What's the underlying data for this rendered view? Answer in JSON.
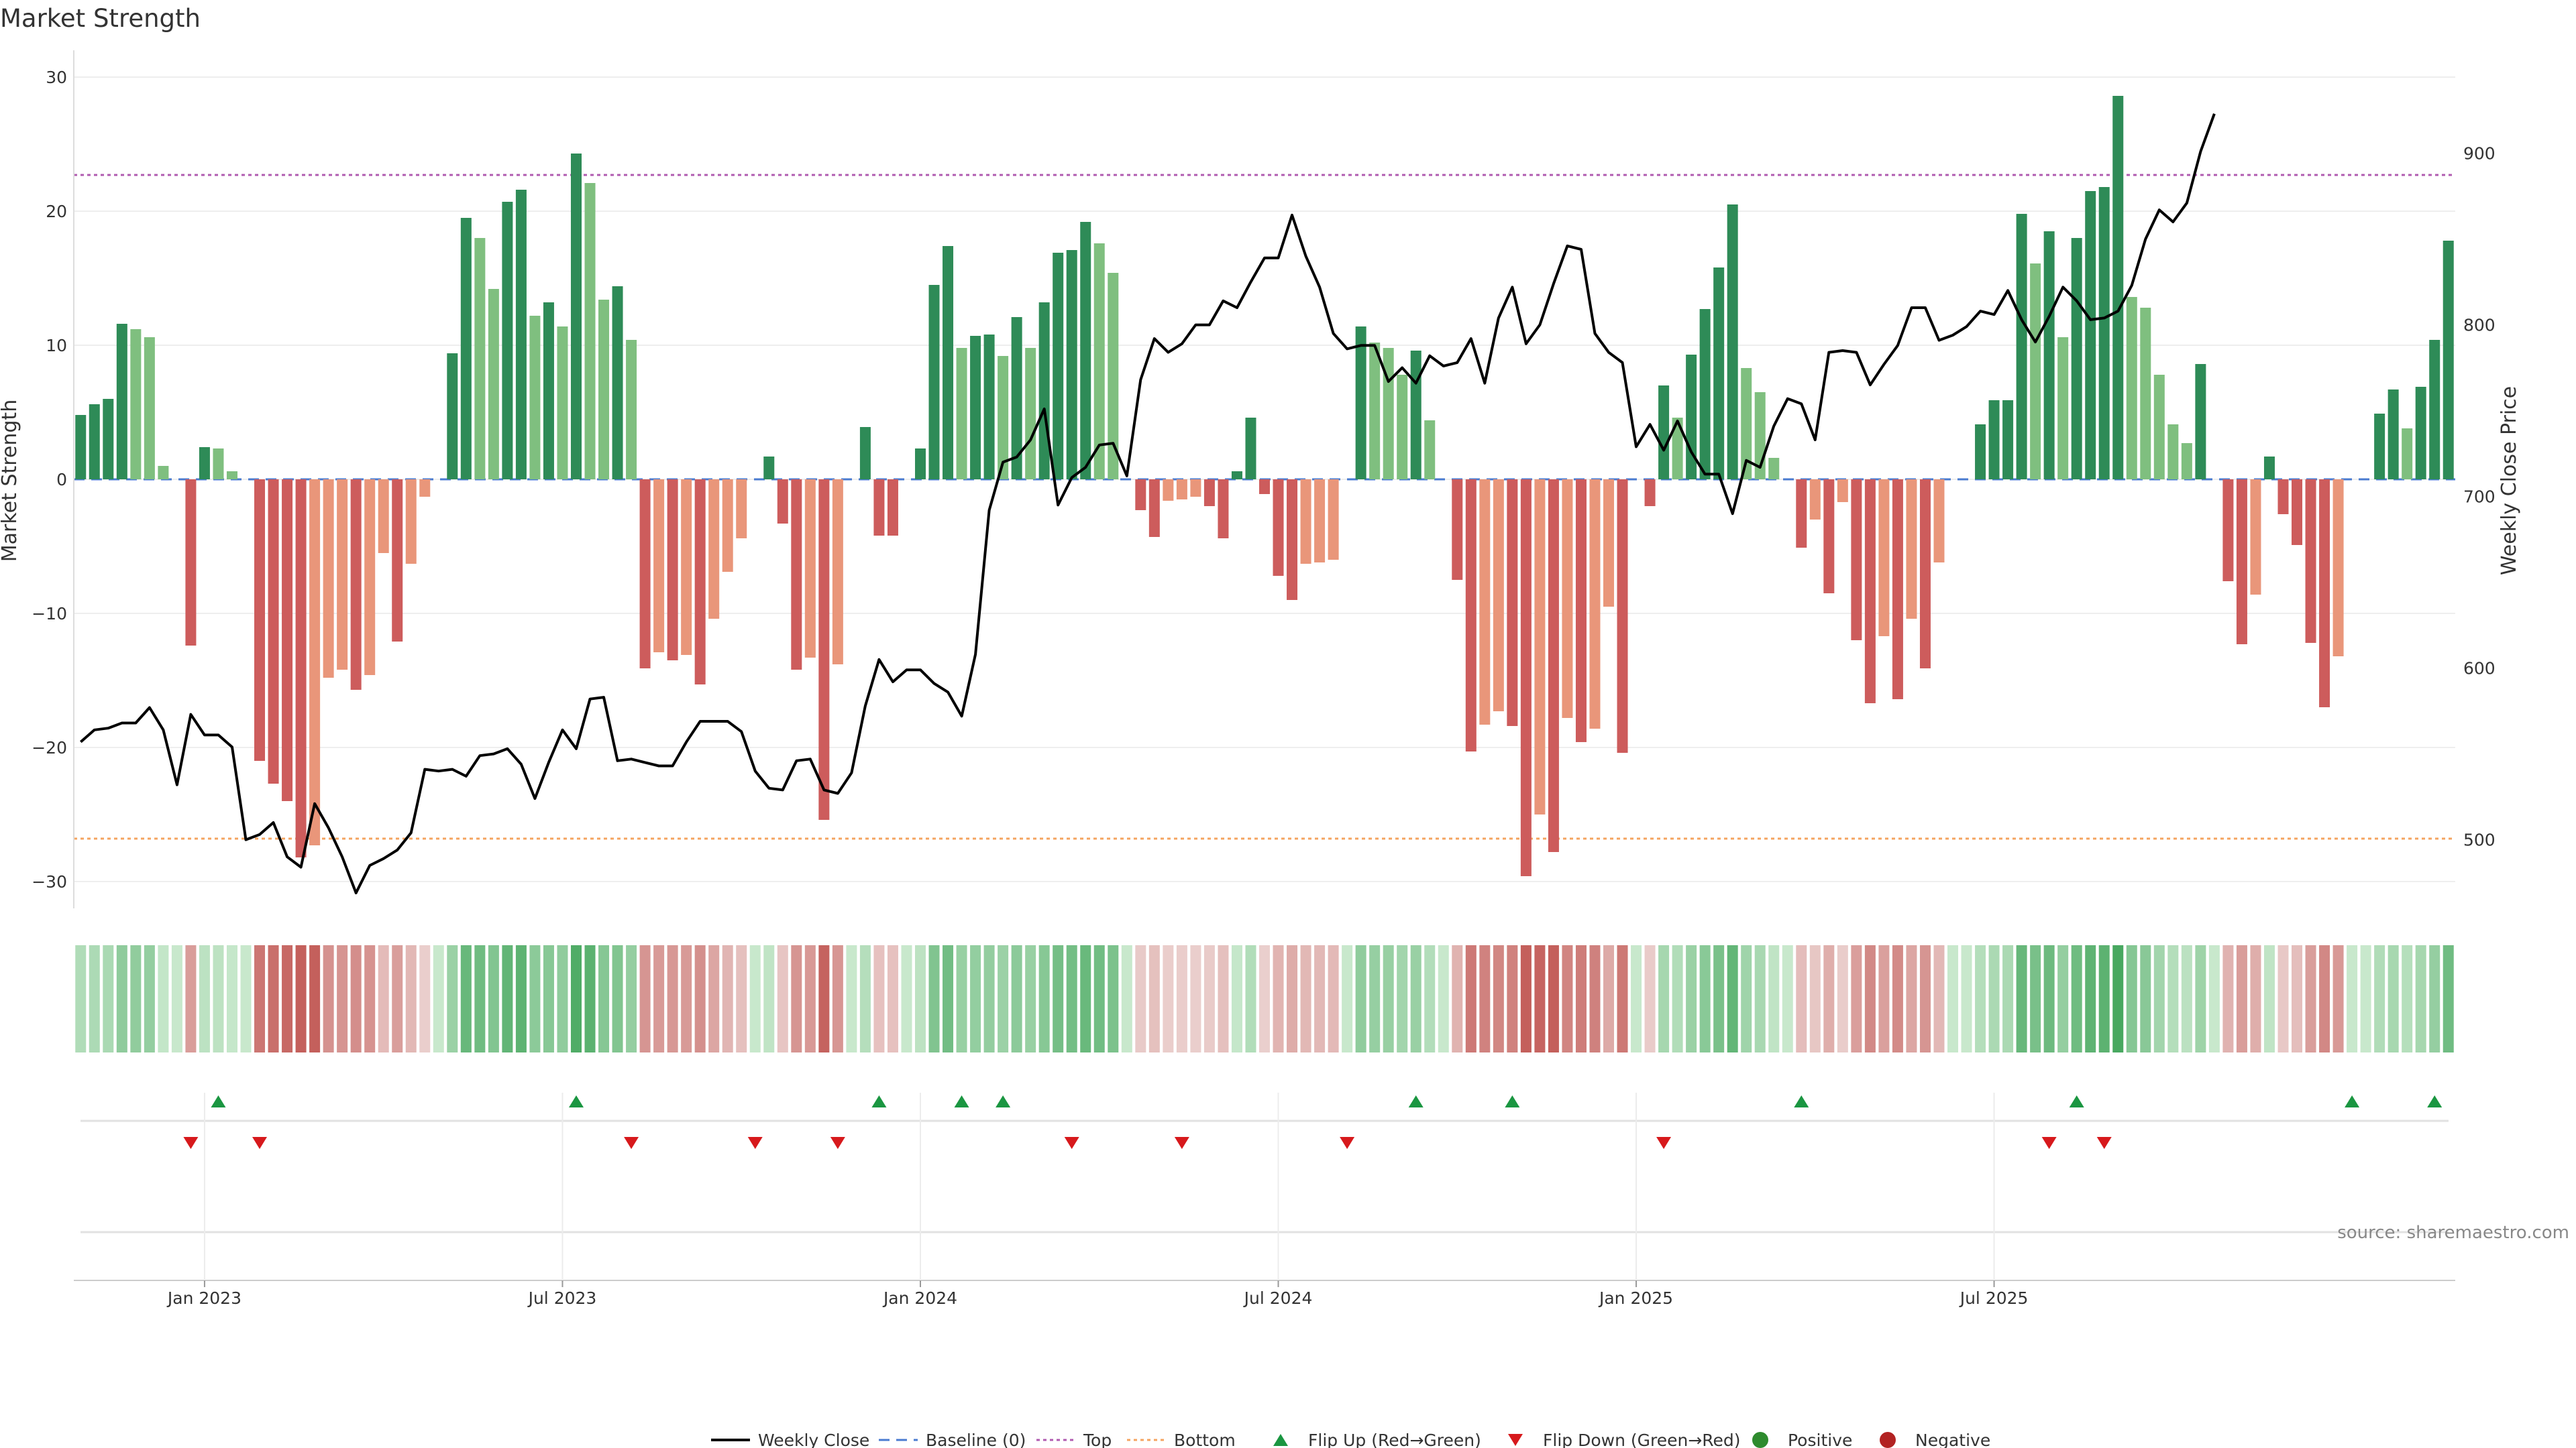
{
  "chart_data": {
    "type": "bar",
    "title": "Market Strength",
    "ylabel_left": "Market Strength",
    "ylabel_right": "Weekly Close Price",
    "ylim_left": [
      -32,
      32
    ],
    "ylim_right": [
      460,
      960
    ],
    "yticks_left": [
      30,
      20,
      10,
      0,
      -10,
      -20,
      -30
    ],
    "ytick_labels_left": [
      "30",
      "20",
      "10",
      "0",
      "−10",
      "−20",
      "−30"
    ],
    "yticks_right": [
      900,
      800,
      700,
      600,
      500
    ],
    "ytick_labels_right": [
      "900",
      "800",
      "700",
      "600",
      "500"
    ],
    "xtick_labels": [
      "Jan 2023",
      "Jul 2023",
      "Jan 2024",
      "Jul 2024",
      "Jan 2025",
      "Jul 2025"
    ],
    "xtick_week_index": [
      9,
      35,
      61,
      87,
      113,
      139
    ],
    "top_threshold": 22.7,
    "bottom_threshold": -26.8,
    "baseline": 0,
    "source_text": "source: sharemaestro.com",
    "colors": {
      "pos_strong": "#2e8b57",
      "pos_weak": "#7fbf7f",
      "neg_strong": "#cd5c5c",
      "neg_weak": "#e9967a",
      "price": "#000000",
      "top": "#b05bb0",
      "bottom": "#f4a460",
      "baseline": "#4a7bd0",
      "flip_up": "#1a9641",
      "flip_down": "#d7191c"
    },
    "strength": [
      4.8,
      5.6,
      6,
      11.6,
      11.2,
      10.6,
      1,
      0,
      -12.4,
      2.4,
      2.3,
      0.6,
      0,
      -21,
      -22.7,
      -24,
      -28.2,
      -27.3,
      -14.8,
      -14.2,
      -15.7,
      -14.6,
      -5.5,
      -12.1,
      -6.3,
      -1.3,
      0,
      9.4,
      19.5,
      18,
      14.2,
      20.7,
      21.6,
      12.2,
      13.2,
      11.4,
      24.3,
      22.1,
      13.4,
      14.4,
      10.4,
      -14.1,
      -12.9,
      -13.5,
      -13.1,
      -15.3,
      -10.4,
      -6.9,
      -4.4,
      0,
      1.7,
      -3.3,
      -14.2,
      -13.3,
      -25.4,
      -13.8,
      0,
      3.9,
      -4.2,
      -4.2,
      0,
      2.3,
      14.5,
      17.4,
      9.8,
      10.7,
      10.8,
      9.2,
      12.1,
      9.8,
      13.2,
      16.9,
      17.1,
      19.2,
      17.6,
      15.4,
      0,
      -2.3,
      -4.3,
      -1.6,
      -1.5,
      -1.3,
      -2,
      -4.4,
      0.6,
      4.6,
      -1.1,
      -7.2,
      -9,
      -6.3,
      -6.2,
      -6,
      0,
      11.4,
      10.2,
      9.8,
      7.8,
      9.6,
      4.4,
      0,
      -7.5,
      -20.3,
      -18.3,
      -17.3,
      -18.4,
      -29.6,
      -25,
      -27.8,
      -17.8,
      -19.6,
      -18.6,
      -9.5,
      -20.4,
      0,
      -2,
      7,
      4.6,
      9.3,
      12.7,
      15.8,
      20.5,
      8.3,
      6.5,
      1.6,
      0,
      -5.1,
      -3,
      -8.5,
      -1.7,
      -12,
      -16.7,
      -11.7,
      -16.4,
      -10.4,
      -14.1,
      -6.2,
      0,
      0,
      4.1,
      5.9,
      5.9,
      19.8,
      16.1,
      18.5,
      10.6,
      18,
      21.5,
      21.8,
      28.6,
      13.6,
      12.8,
      7.8,
      4.1,
      2.7,
      8.6,
      0,
      -7.6,
      -12.3,
      -8.6,
      1.7,
      -2.6,
      -4.9,
      -12.2,
      -17,
      -13.2,
      0,
      0,
      4.9,
      6.7,
      3.8,
      6.9,
      10.4,
      17.8
    ],
    "weekly_close": [
      557,
      564,
      565,
      568,
      568,
      577,
      564,
      532,
      573,
      561,
      561,
      554,
      500,
      503,
      510,
      490,
      484,
      521,
      507,
      490,
      469,
      485,
      489,
      494,
      504,
      541,
      540,
      541,
      537,
      549,
      550,
      553,
      544,
      524,
      545,
      564,
      553,
      582,
      583,
      546,
      547,
      545,
      543,
      543,
      557,
      569,
      569,
      569,
      563,
      540,
      530,
      529,
      546,
      547,
      529,
      527,
      539,
      578,
      605,
      592,
      599,
      599,
      591,
      586,
      572,
      608,
      692,
      720,
      723,
      733,
      751,
      695,
      711,
      717,
      730,
      731,
      712,
      768,
      792,
      784,
      789,
      800,
      800,
      814,
      810,
      825,
      839,
      839,
      864,
      840,
      822,
      795,
      786,
      788,
      788,
      767,
      775,
      766,
      782,
      776,
      778,
      792,
      766,
      804,
      822,
      789,
      800,
      824,
      846,
      844,
      795,
      784,
      778,
      729,
      742,
      727,
      744,
      726,
      713,
      713,
      690,
      721,
      717,
      741,
      757,
      754,
      733,
      784,
      785,
      784,
      765,
      777,
      788,
      810,
      810,
      791,
      794,
      799,
      808,
      806,
      820,
      803,
      790,
      805,
      822,
      814,
      803,
      804,
      808,
      823,
      850,
      867,
      860,
      871,
      901,
      923
    ]
  },
  "strip": {
    "label": "color-coded weekly strength strip"
  },
  "flips": {
    "up_week_index": [
      10,
      36,
      58,
      64,
      67,
      97,
      104,
      125,
      145,
      165,
      171
    ],
    "down_week_index": [
      8,
      13,
      40,
      49,
      55,
      72,
      80,
      92,
      115,
      143,
      147
    ]
  },
  "legend": {
    "items": [
      {
        "label": "Weekly Close",
        "kind": "line",
        "color": "#000000"
      },
      {
        "label": "Baseline (0)",
        "kind": "dash",
        "color": "#4a7bd0"
      },
      {
        "label": "Top",
        "kind": "dot",
        "color": "#b05bb0"
      },
      {
        "label": "Bottom",
        "kind": "dot",
        "color": "#f4a460"
      },
      {
        "label": "Flip Up (Red→Green)",
        "kind": "up",
        "color": "#1a9641"
      },
      {
        "label": "Flip Down (Green→Red)",
        "kind": "down",
        "color": "#d7191c"
      },
      {
        "label": "Positive",
        "kind": "circle",
        "color": "#2e8b2e"
      },
      {
        "label": "Negative",
        "kind": "circle",
        "color": "#b22222"
      }
    ]
  }
}
